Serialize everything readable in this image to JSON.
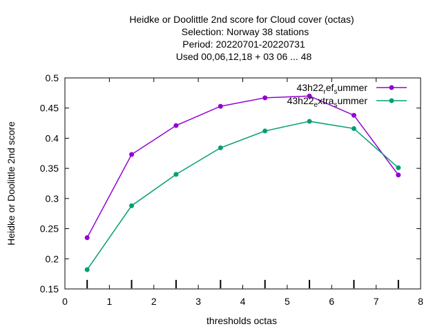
{
  "chart_data": {
    "type": "line",
    "title_lines": [
      "Heidke or Doolittle 2nd score  for Cloud cover (octas)",
      "Selection: Norway     38 stations",
      "Period: 20220701-20220731",
      "Used  00,06,12,18  + 03 06 ... 48"
    ],
    "xlabel": "thresholds octas",
    "ylabel": "Heidke or Doolittle 2nd score",
    "xlim": [
      0,
      8
    ],
    "ylim": [
      0.15,
      0.5
    ],
    "xticks": [
      "0",
      "1",
      "2",
      "3",
      "4",
      "5",
      "6",
      "7",
      "8"
    ],
    "yticks": [
      "0.15",
      "0.2",
      "0.25",
      "0.3",
      "0.35",
      "0.4",
      "0.45",
      "0.5"
    ],
    "grid": false,
    "legend_position": "top-right",
    "x": [
      0.5,
      1.5,
      2.5,
      3.5,
      4.5,
      5.5,
      6.5,
      7.5
    ],
    "series": [
      {
        "legend_parts": [
          {
            "text": "43h22",
            "sub": false
          },
          {
            "text": "r",
            "sub": true
          },
          {
            "text": "ef",
            "sub": false
          },
          {
            "text": "s",
            "sub": true
          },
          {
            "text": "ummer",
            "sub": false
          }
        ],
        "color": "#9400d3",
        "values": [
          0.235,
          0.373,
          0.421,
          0.453,
          0.467,
          0.47,
          0.438,
          0.339
        ]
      },
      {
        "legend_parts": [
          {
            "text": "43h22",
            "sub": false
          },
          {
            "text": "e",
            "sub": true
          },
          {
            "text": "xtra",
            "sub": false
          },
          {
            "text": "s",
            "sub": true
          },
          {
            "text": "ummer",
            "sub": false
          }
        ],
        "color": "#009e73",
        "values": [
          0.182,
          0.288,
          0.34,
          0.384,
          0.412,
          0.428,
          0.416,
          0.351
        ]
      }
    ]
  }
}
